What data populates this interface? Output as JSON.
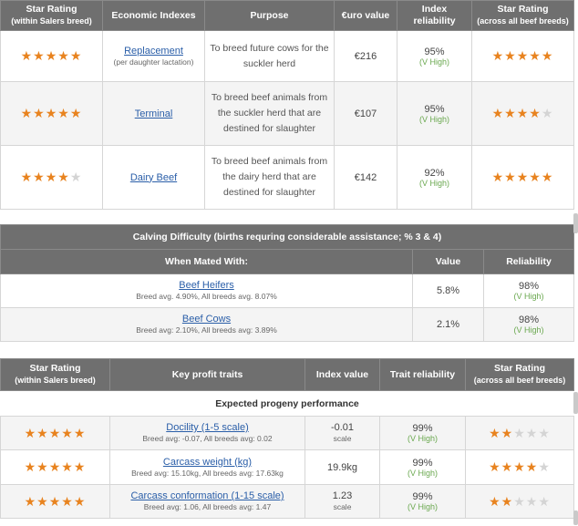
{
  "economic": {
    "headers": {
      "star_rating": "Star Rating",
      "star_rating_sub": "(within Salers breed)",
      "indexes": "Economic Indexes",
      "purpose": "Purpose",
      "euro": "€uro value",
      "reliability": "Index reliability",
      "star_rating_all": "Star Rating",
      "star_rating_all_sub": "(across all beef breeds)"
    },
    "rows": [
      {
        "stars_within": 5,
        "index": "Replacement",
        "index_sub": "(per daughter lactation)",
        "purpose": "To breed future cows for the suckler herd",
        "euro": "€216",
        "reliability": "95%",
        "reliability_label": "(V High)",
        "stars_all": 5
      },
      {
        "stars_within": 5,
        "index": "Terminal",
        "index_sub": "",
        "purpose": "To breed beef animals from the suckler herd that are destined for slaughter",
        "euro": "€107",
        "reliability": "95%",
        "reliability_label": "(V High)",
        "stars_all": 4
      },
      {
        "stars_within": 4,
        "index": "Dairy Beef",
        "index_sub": "",
        "purpose": "To breed beef animals from the dairy herd that are destined for slaughter",
        "euro": "€142",
        "reliability": "92%",
        "reliability_label": "(V High)",
        "stars_all": 5
      }
    ]
  },
  "calving": {
    "title": "Calving Difficulty (births requring considerable assistance; % 3 & 4)",
    "headers": {
      "mated": "When Mated With:",
      "value": "Value",
      "reliability": "Reliability"
    },
    "rows": [
      {
        "label": "Beef Heifers",
        "sub": "Breed avg. 4.90%, All breeds avg. 8.07%",
        "value": "5.8%",
        "reliability": "98%",
        "reliability_label": "(V High)"
      },
      {
        "label": "Beef Cows",
        "sub": "Breed avg: 2.10%, All breeds avg: 3.89%",
        "value": "2.1%",
        "reliability": "98%",
        "reliability_label": "(V High)"
      }
    ]
  },
  "traits": {
    "headers": {
      "star_rating": "Star Rating",
      "star_rating_sub": "(within Salers breed)",
      "key_traits": "Key profit traits",
      "index_value": "Index value",
      "trait_reliability": "Trait reliability",
      "star_rating_all": "Star Rating",
      "star_rating_all_sub": "(across all beef breeds)"
    },
    "subtitle": "Expected progeny performance",
    "rows": [
      {
        "stars_within": 5,
        "trait": "Docility (1-5 scale)",
        "sub": "Breed avg: -0.07, All breeds avg: 0.02",
        "value": "-0.01",
        "unit": "scale",
        "reliability": "99%",
        "reliability_label": "(V High)",
        "stars_all": 2
      },
      {
        "stars_within": 5,
        "trait": "Carcass weight (kg)",
        "sub": "Breed avg: 15.10kg, All breeds avg: 17.63kg",
        "value": "19.9kg",
        "unit": "",
        "reliability": "99%",
        "reliability_label": "(V High)",
        "stars_all": 4
      },
      {
        "stars_within": 5,
        "trait": "Carcass conformation (1-15 scale)",
        "sub": "Breed avg: 1.06, All breeds avg: 1.47",
        "value": "1.23",
        "unit": "scale",
        "reliability": "99%",
        "reliability_label": "(V High)",
        "stars_all": 2
      }
    ]
  },
  "colors": {
    "star_on": "#e8831f",
    "star_off": "#d4d4d4",
    "header_bg": "#6f6f6f",
    "link": "#2a5ea8",
    "reliability_green": "#6aa84f"
  }
}
